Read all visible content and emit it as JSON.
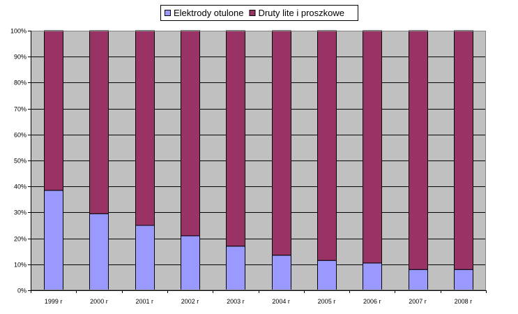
{
  "chart_data": {
    "type": "bar",
    "stacked": true,
    "percent_stacked": true,
    "categories": [
      "1999 r",
      "2000 r",
      "2001 r",
      "2002 r",
      "2003 r",
      "2004 r",
      "2005 r",
      "2006 r",
      "2007 r",
      "2008 r"
    ],
    "series": [
      {
        "name": "Elektrody otulone",
        "color": "#9999ff",
        "values": [
          38.5,
          29.5,
          25,
          21,
          17,
          13.5,
          11.5,
          10.5,
          8,
          8
        ]
      },
      {
        "name": "Druty lite i proszkowe",
        "color": "#993366",
        "values": [
          61.5,
          70.5,
          75,
          79,
          83,
          86.5,
          88.5,
          89.5,
          92,
          92
        ]
      }
    ],
    "ylim": [
      0,
      100
    ],
    "yticks": [
      "0%",
      "10%",
      "20%",
      "30%",
      "40%",
      "50%",
      "60%",
      "70%",
      "80%",
      "90%",
      "100%"
    ],
    "grid": true,
    "legend": "top-center",
    "plot_background": "#c0c0c0",
    "gridline_color": "#000000"
  }
}
